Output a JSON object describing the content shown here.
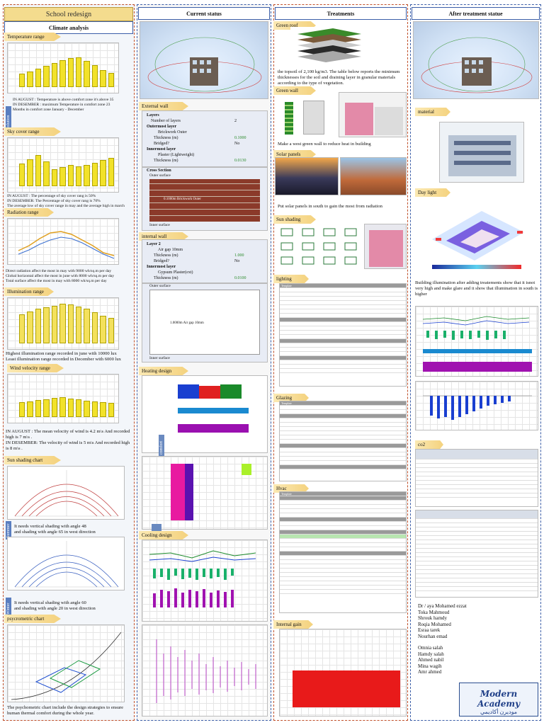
{
  "poster": {
    "title": "School redesign",
    "col1_header": "Climate analysis",
    "col2_header": "Current status",
    "col3_header": "Treatments",
    "col4_header": "After treatment statue"
  },
  "col1": {
    "temperature_tag": "Temperature range",
    "temperature_note": "IN AUGUST : Temperature is above comfort zone it's above 35\nIN DESEMBER : maximum Temperature in comfort zone 23\nMonths in comfort zone January - December",
    "side_label": "solution",
    "sky_tag": "Sky cover range",
    "sky_note": "IN AUGUST : The percentage of sky cover rang is 50%\nIN DESEMBER: The Percentage of sky cover rang is 70%\nThe average low of sky cover range in may and the average high in march",
    "radiation_tag": "Radiation range",
    "radiation_note": "Direct radiation affect the most in may with 9000 wh/sq.m per day\nGlobal horizontal affect the most in june with 8000 wh/sq.m per day\nTotal surface affect the most in may with 8000 wh/sq.m per day",
    "illumination_tag": "Illumination range",
    "illumination_note": "Highest illumination range recorded in june with 10000 lux\nLeast illumination range recorded in December with 6000 lux",
    "wind_tag": "Wind velocity range",
    "wind_note": "IN AUGUST : The mean velocity of wind is 4.2 m\\s And recorded high is 7 m\\s .\nIN DESEMBER: The velocity of wind is 5 m\\s And recorded high is 8 m\\s .",
    "sun_tag": "Sun shading chart",
    "summer_label": "Summer",
    "sun_note_1": "It needs vertical shading with angle 48\nand shading with angle 65 in west direction",
    "winter_label": "Winter",
    "sun_note_2": "It needs vertical shading with angle 60\nand shading with angle 20 in west direction",
    "psychro_tag": "psycrometric chart",
    "psychro_note": "The psychometric chart include the design strategies to ensure human thermal comfort during the whole year."
  },
  "col2": {
    "external_tag": "External wall",
    "layers_title": "Layers",
    "layers_count_label": "Number of layers",
    "layers_count": "2",
    "outermost_label": "Outermost layer",
    "outer_material": "Brickwork Outer",
    "outer_thickness_label": "Thickness (m)",
    "outer_thickness": "0.1000",
    "bridged_label": "Bridged?",
    "bridged_value": "No",
    "innermost_label": "Innermost layer",
    "inner_material": "Plaster (Lightweight)",
    "inner_thickness": "0.0130",
    "cross_section": "Cross Section",
    "outer_surface": "Outer surface",
    "inner_surface": "Inner surface",
    "brick_caption": "0.1000m  Brickwork Outer",
    "internal_tag": "internal wall",
    "layer2": "Layer 2",
    "air_gap": "Air gap 10mm",
    "layer2_thickness": "1.000",
    "gypsum": "Gypsum Plaster(ext)",
    "gypsum_thickness": "0.0100",
    "air_caption": "1.0000m   Air gap 10mm",
    "heating_tag": "Heating design",
    "comfort_label": "comfort",
    "temps_label": "Temps and heat flows",
    "cooling_tag": "Cooling design"
  },
  "col3": {
    "green_roof_tag": "Green roof",
    "green_roof_note": "the topsoil of 2,100 kg/m3. The table below reports the minimum thicknesses for the soil and draining layer in granular materials according to the type of vegetation.",
    "green_wall_tag": "Green wall",
    "green_wall_note": "Make a west green wall to reduce heat in building",
    "solar_tag": "Solar panels",
    "solar_note": "Put solar panels in south to gain the most from radiation",
    "sun_shading_tag": "Sun shading",
    "lighting_tag": "lighting",
    "glazing_tag": "Glazing",
    "hvac_tag": "Hvac",
    "internal_gain_tag": "Internal gain",
    "template_label": "Template"
  },
  "col4": {
    "material_tag": "material",
    "daylight_tag": "Day light",
    "daylight_note": "Building illumination after adding treatements show that it isnot very high and make glare and it show that illumination in south is higher",
    "co2_tag": "co2",
    "credits": [
      "Dr / aya Mohamed ezzat",
      "Toka Mahmoud",
      "Shrouk hamdy",
      "Roqia Mohamed",
      "Esraa tarek",
      "Nourhan emad",
      "",
      "Omnia salah",
      "Hamdy salah",
      "Ahmed nabil",
      "Mina wagih",
      "Amr ahmed"
    ],
    "logo_text": "Modern Academy",
    "logo_sub": "موديرن أكاديمي"
  },
  "colors": {
    "accent": "#3b5ea8",
    "tag": "#f4d27e",
    "dash": "#c0502a",
    "bar": "#f2e22a"
  }
}
